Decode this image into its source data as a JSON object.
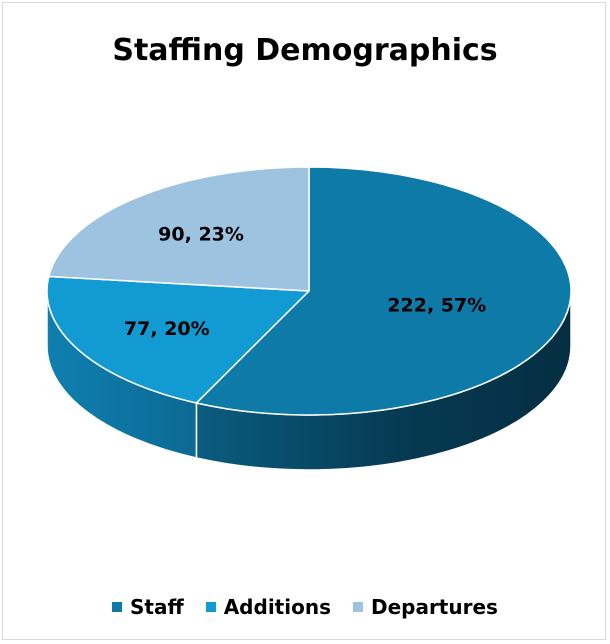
{
  "chart_data": {
    "type": "pie",
    "title": "Staffing Demographics",
    "slices": [
      {
        "name": "Staff",
        "value": 222,
        "percent": 57,
        "label": "222, 57%",
        "color": "#0e7aa8"
      },
      {
        "name": "Additions",
        "value": 77,
        "percent": 20,
        "label": "77, 20%",
        "color": "#129ad3"
      },
      {
        "name": "Departures",
        "value": 90,
        "percent": 23,
        "label": "90, 23%",
        "color": "#9dc3e1"
      }
    ],
    "legend_position": "bottom",
    "style": "3d"
  }
}
